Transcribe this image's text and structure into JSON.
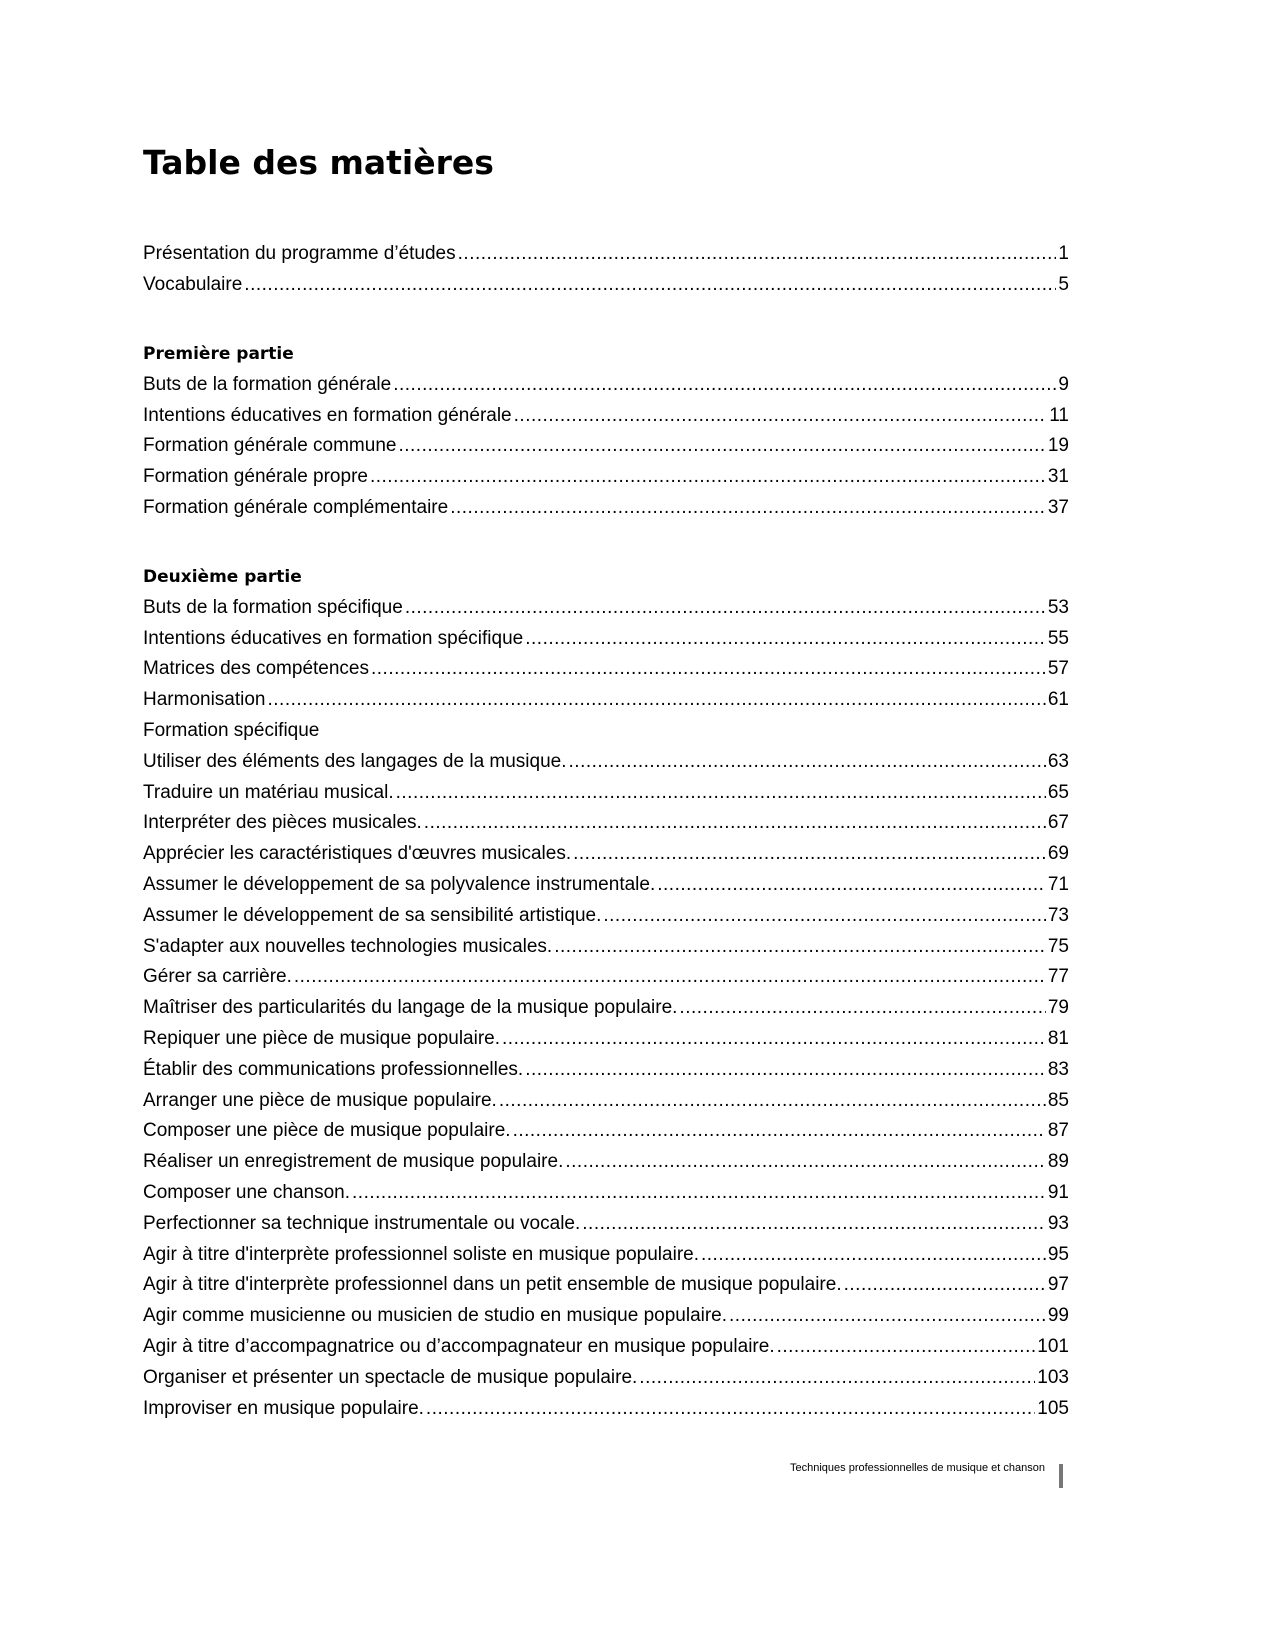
{
  "title": "Table des matières",
  "intro": [
    {
      "label": "Présentation du programme d’études",
      "page": "1"
    },
    {
      "label": "Vocabulaire",
      "page": "5"
    }
  ],
  "part1": {
    "heading": "Première partie",
    "items": [
      {
        "label": "Buts de la formation générale",
        "page": "9"
      },
      {
        "label": "Intentions éducatives en formation générale",
        "page": "11"
      },
      {
        "label": "Formation générale commune",
        "page": "19"
      },
      {
        "label": "Formation générale propre",
        "page": "31"
      },
      {
        "label": "Formation générale complémentaire",
        "page": "37"
      }
    ]
  },
  "part2": {
    "heading": "Deuxième partie",
    "items": [
      {
        "label": "Buts de la formation spécifique",
        "page": "53"
      },
      {
        "label": "Intentions éducatives en formation spécifique",
        "page": "55"
      },
      {
        "label": "Matrices des compétences",
        "page": "57"
      },
      {
        "label": "Harmonisation",
        "page": "61"
      }
    ],
    "subheading": "Formation spécifique",
    "competencies": [
      {
        "label": "Utiliser des éléments des langages de la musique.",
        "page": "63"
      },
      {
        "label": "Traduire un matériau musical.",
        "page": "65"
      },
      {
        "label": "Interpréter des pièces musicales.",
        "page": "67"
      },
      {
        "label": "Apprécier les caractéristiques d'œuvres musicales.",
        "page": "69"
      },
      {
        "label": "Assumer le développement de sa polyvalence instrumentale.",
        "page": "71"
      },
      {
        "label": "Assumer le développement de sa sensibilité artistique.",
        "page": "73"
      },
      {
        "label": "S'adapter aux nouvelles technologies musicales.",
        "page": "75"
      },
      {
        "label": "Gérer sa carrière.",
        "page": "77"
      },
      {
        "label": "Maîtriser des particularités du langage de la musique populaire.",
        "page": "79"
      },
      {
        "label": "Repiquer une pièce de musique populaire.",
        "page": "81"
      },
      {
        "label": "Établir des communications professionnelles.",
        "page": "83"
      },
      {
        "label": "Arranger une pièce de musique populaire.",
        "page": "85"
      },
      {
        "label": "Composer une pièce de musique populaire.",
        "page": "87"
      },
      {
        "label": "Réaliser un enregistrement de musique populaire.",
        "page": "89"
      },
      {
        "label": "Composer une chanson.",
        "page": "91"
      },
      {
        "label": "Perfectionner sa technique instrumentale ou vocale.",
        "page": "93"
      },
      {
        "label": "Agir à titre d'interprète professionnel soliste en musique populaire.",
        "page": "95"
      },
      {
        "label": "Agir à titre d'interprète professionnel dans un petit ensemble de musique populaire.",
        "page": "97"
      },
      {
        "label": "Agir comme musicienne ou musicien de studio en musique populaire.",
        "page": "99"
      },
      {
        "label": "Agir à titre d’accompagnatrice ou d’accompagnateur en musique populaire.",
        "page": "101"
      },
      {
        "label": "Organiser et présenter un spectacle de musique populaire.",
        "page": "103"
      },
      {
        "label": "Improviser en musique populaire.",
        "page": "105"
      }
    ]
  },
  "footer": "Techniques professionnelles de musique et chanson"
}
